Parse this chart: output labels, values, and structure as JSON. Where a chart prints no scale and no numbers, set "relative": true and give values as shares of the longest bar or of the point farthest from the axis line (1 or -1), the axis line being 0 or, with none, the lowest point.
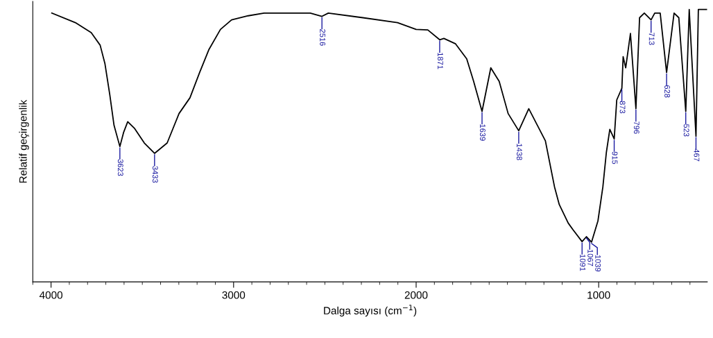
{
  "chart_data": {
    "type": "line",
    "relative": true,
    "xlabel": "Dalga sayısı (cm$^{−1}$)",
    "ylabel": "Relatif geçirgenlik",
    "xlim": [
      4100,
      405
    ],
    "xticks": [
      4000,
      3000,
      2000,
      1000
    ],
    "grid": false,
    "legend": false,
    "marker": "none",
    "line_style": "solid",
    "series": [
      {
        "color": "#000000",
        "x": [
          3996,
          3867,
          3780,
          3731,
          3705,
          3678,
          3655,
          3623,
          3602,
          3580,
          3542,
          3489,
          3433,
          3364,
          3299,
          3239,
          3186,
          3136,
          3072,
          3011,
          2920,
          2833,
          2580,
          2516,
          2481,
          2292,
          2102,
          2000,
          1936,
          1871,
          1848,
          1784,
          1723,
          1685,
          1639,
          1591,
          1545,
          1496,
          1438,
          1383,
          1292,
          1242,
          1216,
          1167,
          1140,
          1091,
          1067,
          1039,
          1004,
          977,
          958,
          939,
          915,
          901,
          873,
          866,
          852,
          826,
          796,
          776,
          750,
          713,
          693,
          663,
          628,
          587,
          561,
          523,
          504,
          467,
          454,
          409
        ],
        "values": [
          0.987,
          0.952,
          0.915,
          0.869,
          0.802,
          0.686,
          0.575,
          0.497,
          0.55,
          0.588,
          0.563,
          0.51,
          0.472,
          0.51,
          0.618,
          0.676,
          0.769,
          0.852,
          0.927,
          0.962,
          0.977,
          0.987,
          0.987,
          0.975,
          0.987,
          0.97,
          0.952,
          0.927,
          0.925,
          0.889,
          0.894,
          0.874,
          0.819,
          0.736,
          0.626,
          0.786,
          0.736,
          0.618,
          0.555,
          0.636,
          0.518,
          0.349,
          0.284,
          0.216,
          0.191,
          0.148,
          0.166,
          0.146,
          0.224,
          0.349,
          0.475,
          0.56,
          0.525,
          0.668,
          0.711,
          0.827,
          0.786,
          0.912,
          0.636,
          0.97,
          0.987,
          0.962,
          0.987,
          0.987,
          0.769,
          0.987,
          0.97,
          0.626,
          1,
          0.535,
          1,
          1
        ]
      }
    ],
    "annotations": [
      {
        "text": "3623",
        "x": 3623,
        "y": 0.497
      },
      {
        "text": "3433",
        "x": 3433,
        "y": 0.472
      },
      {
        "text": "2516",
        "x": 2516,
        "y": 0.975
      },
      {
        "text": "1871",
        "x": 1871,
        "y": 0.889
      },
      {
        "text": "1639",
        "x": 1639,
        "y": 0.626
      },
      {
        "text": "1438",
        "x": 1438,
        "y": 0.555
      },
      {
        "text": "1091",
        "x": 1091,
        "y": 0.148
      },
      {
        "text": "1067",
        "x": 1067,
        "y": 0.166
      },
      {
        "text": "1039",
        "x": 1039,
        "y": 0.146
      },
      {
        "text": "915",
        "x": 915,
        "y": 0.525
      },
      {
        "text": "873",
        "x": 873,
        "y": 0.711
      },
      {
        "text": "796",
        "x": 796,
        "y": 0.636
      },
      {
        "text": "713",
        "x": 713,
        "y": 0.962
      },
      {
        "text": "628",
        "x": 628,
        "y": 0.769
      },
      {
        "text": "523",
        "x": 523,
        "y": 0.626
      },
      {
        "text": "467",
        "x": 467,
        "y": 0.535
      }
    ]
  }
}
